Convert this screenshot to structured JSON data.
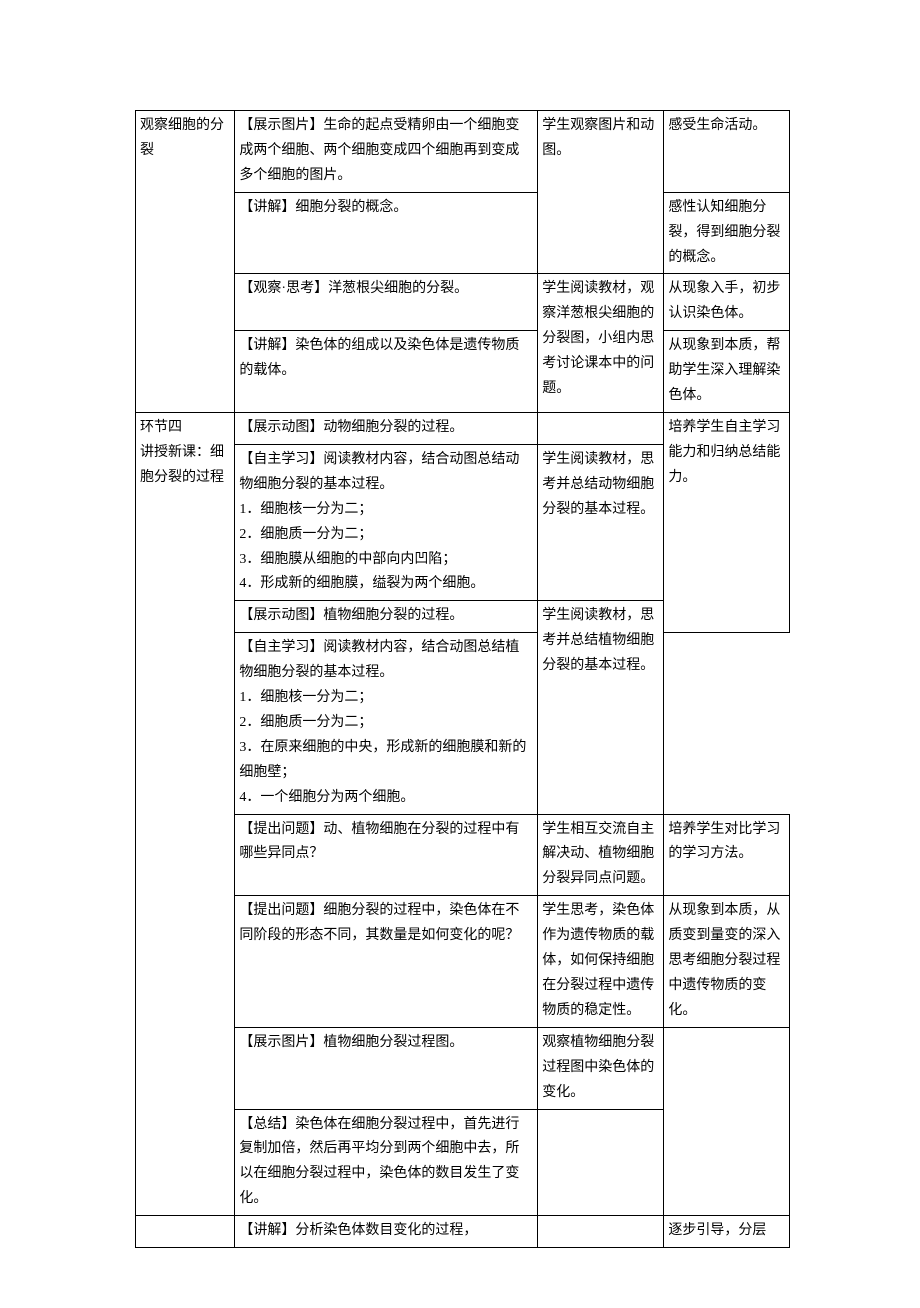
{
  "colors": {
    "background": "#ffffff",
    "border": "#000000",
    "text": "#000000"
  },
  "typography": {
    "font_family": "SimSun",
    "font_size_pt": 10.5,
    "line_height": 1.78
  },
  "table": {
    "column_widths_pct": [
      15.2,
      46.3,
      19.3,
      19.2
    ],
    "rows": [
      {
        "c1": "观察细胞的分裂",
        "c2": "【展示图片】生命的起点受精卵由一个细胞变成两个细胞、两个细胞变成四个细胞再到变成多个细胞的图片。",
        "c3": "学生观察图片和动图。",
        "c4": "感受生命活动。",
        "c1_rowspan": 4,
        "c3_rowspan": 2
      },
      {
        "c2": "【讲解】细胞分裂的概念。",
        "c4": "感性认知细胞分裂，得到细胞分裂的概念。"
      },
      {
        "c2": "【观察·思考】洋葱根尖细胞的分裂。",
        "c3": "学生阅读教材，观察洋葱根尖细胞的分裂图，小组内思考讨论课本中的问题。",
        "c4": "从现象入手，初步认识染色体。",
        "c3_rowspan": 2
      },
      {
        "c2": "【讲解】染色体的组成以及染色体是遗传物质的载体。",
        "c4": "从现象到本质，帮助学生深入理解染色体。"
      },
      {
        "c1": "环节四\n讲授新课：细胞分裂的过程",
        "c2": "【展示动图】动物细胞分裂的过程。",
        "c3": "",
        "c4": "",
        "c1_rowspan": 8,
        "c4_rowspan": 3
      },
      {
        "c2": "【自主学习】阅读教材内容，结合动图总结动物细胞分裂的基本过程。\n1．细胞核一分为二；\n2．细胞质一分为二；\n3．细胞膜从细胞的中部向内凹陷；\n4．形成新的细胞膜，缢裂为两个细胞。",
        "c3": "学生阅读教材，思考并总结动物细胞分裂的基本过程。",
        "c4_text_override": "培养学生自主学习能力和归纳总结能力。"
      },
      {
        "c2": "【展示动图】植物细胞分裂的过程。",
        "c3": "",
        "c3_rowspan": 2
      },
      {
        "c2": "【自主学习】阅读教材内容，结合动图总结植物细胞分裂的基本过程。\n1．细胞核一分为二；\n2．细胞质一分为二；\n3．在原来细胞的中央，形成新的细胞膜和新的细胞壁；\n4．一个细胞分为两个细胞。",
        "c3_text_override": "学生阅读教材，思考并总结植物细胞分裂的基本过程。"
      },
      {
        "c2": "【提出问题】动、植物细胞在分裂的过程中有哪些异同点？",
        "c3": "学生相互交流自主解决动、植物细胞分裂异同点问题。",
        "c4": "培养学生对比学习的学习方法。"
      },
      {
        "c2": "【提出问题】细胞分裂的过程中，染色体在不同阶段的形态不同，其数量是如何变化的呢？",
        "c3": "学生思考，染色体作为遗传物质的载体，如何保持细胞在分裂过程中遗传物质的稳定性。",
        "c4": "从现象到本质，从质变到量变的深入思考细胞分裂过程中遗传物质的变化。"
      },
      {
        "c2": "【展示图片】植物细胞分裂过程图。",
        "c3": "观察植物细胞分裂过程图中染色体的变化。",
        "c4": "",
        "c4_rowspan": 2
      },
      {
        "c2": "【总结】染色体在细胞分裂过程中，首先进行复制加倍，然后再平均分到两个细胞中去，所以在细胞分裂过程中，染色体的数目发生了变化。",
        "c3": ""
      },
      {
        "c1": "",
        "c2": "【讲解】分析染色体数目变化的过程，",
        "c3": "",
        "c4": "逐步引导，分层"
      }
    ]
  }
}
